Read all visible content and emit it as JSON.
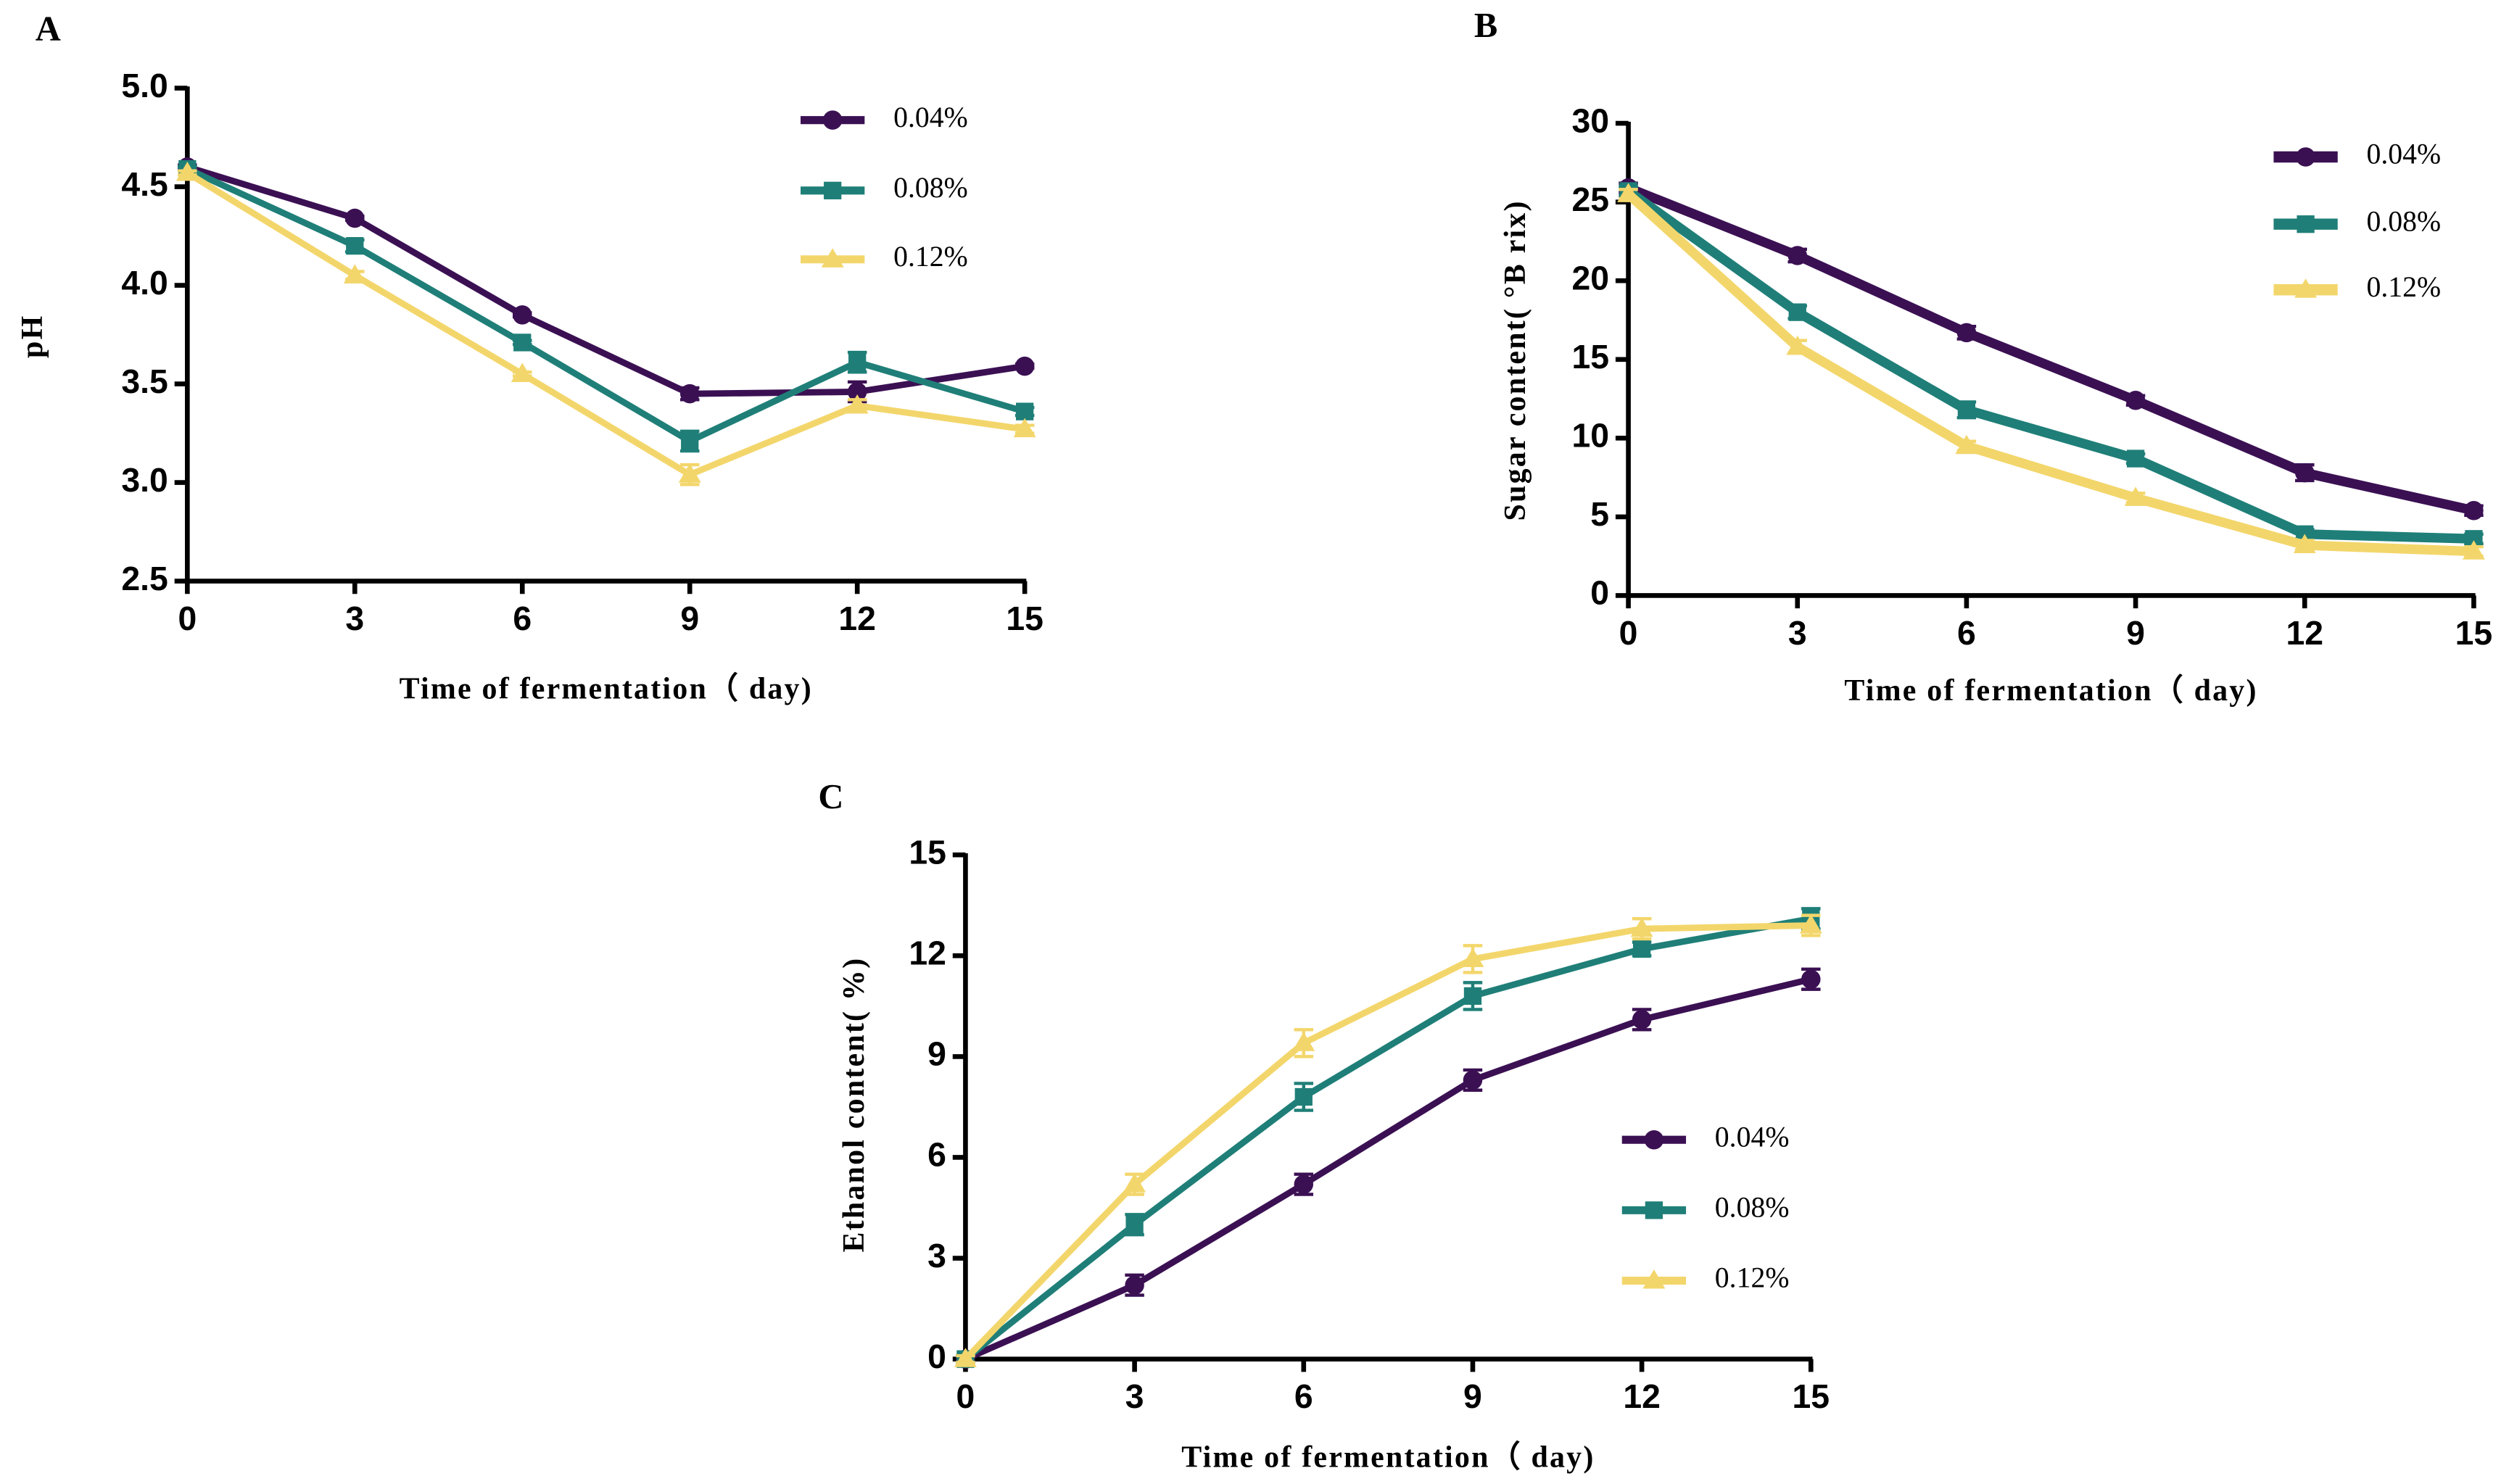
{
  "chart_data": [
    {
      "type": "line",
      "label": "A",
      "ylabel": "pH",
      "xlabel": "Time of fermentation（ day)",
      "x": [
        0,
        3,
        6,
        9,
        12,
        15
      ],
      "xlim": [
        0,
        15
      ],
      "xticks": [
        0,
        3,
        6,
        9,
        12,
        15
      ],
      "ylim": [
        2.5,
        5.0
      ],
      "yticks": [
        2.5,
        {
          "value": 3,
          "label": "3.0"
        },
        3.5,
        {
          "value": 4,
          "label": "4.0"
        },
        4.5,
        {
          "value": 5,
          "label": "5.0"
        }
      ],
      "legend": "upper right",
      "series": [
        {
          "name": "0.04%",
          "color": "#3b1053",
          "marker": "circle",
          "values": [
            4.6,
            4.34,
            3.85,
            3.45,
            3.46,
            3.59
          ],
          "errors": [
            0.01,
            0.01,
            0.01,
            0.03,
            0.05,
            0.01
          ]
        },
        {
          "name": "0.08%",
          "color": "#1f7f78",
          "marker": "square",
          "values": [
            4.59,
            4.2,
            3.71,
            3.21,
            3.61,
            3.36
          ],
          "errors": [
            0.01,
            0.03,
            0.01,
            0.05,
            0.05,
            0.02
          ]
        },
        {
          "name": "0.12%",
          "color": "#f3d66b",
          "marker": "triangle",
          "values": [
            4.57,
            4.05,
            3.55,
            3.04,
            3.39,
            3.27
          ],
          "errors": [
            0.01,
            0.02,
            0.01,
            0.05,
            0.03,
            0.02
          ]
        }
      ]
    },
    {
      "type": "line",
      "label": "B",
      "ylabel": "Sugar content( °B rix)",
      "xlabel": "Time of fermentation（ day)",
      "x": [
        0,
        3,
        6,
        9,
        12,
        15
      ],
      "xlim": [
        0,
        15
      ],
      "xticks": [
        0,
        3,
        6,
        9,
        12,
        15
      ],
      "ylim": [
        0,
        30
      ],
      "yticks": [
        0,
        5,
        10,
        15,
        20,
        25,
        30
      ],
      "legend": "upper right",
      "series": [
        {
          "name": "0.04%",
          "color": "#3b1053",
          "marker": "circle",
          "values": [
            25.9,
            21.6,
            16.7,
            12.4,
            7.8,
            5.4
          ],
          "errors": [
            0.3,
            0.4,
            0.4,
            0.3,
            0.5,
            0.3
          ]
        },
        {
          "name": "0.08%",
          "color": "#1f7f78",
          "marker": "square",
          "values": [
            25.7,
            18.0,
            11.8,
            8.7,
            3.9,
            3.6
          ],
          "errors": [
            0.3,
            0.4,
            0.5,
            0.3,
            0.3,
            0.3
          ]
        },
        {
          "name": "0.12%",
          "color": "#f3d66b",
          "marker": "triangle",
          "values": [
            25.5,
            15.8,
            9.5,
            6.2,
            3.2,
            2.8
          ],
          "errors": [
            0.3,
            0.4,
            0.3,
            0.3,
            0.3,
            0.3
          ]
        }
      ]
    },
    {
      "type": "line",
      "label": "C",
      "ylabel": "Ethanol content( %)",
      "xlabel": "Time of fermentation（ day)",
      "x": [
        0,
        3,
        6,
        9,
        12,
        15
      ],
      "xlim": [
        0,
        15
      ],
      "xticks": [
        0,
        3,
        6,
        9,
        12,
        15
      ],
      "ylim": [
        0,
        15
      ],
      "yticks": [
        0,
        3,
        6,
        9,
        12,
        15
      ],
      "legend": "center right",
      "series": [
        {
          "name": "0.04%",
          "color": "#3b1053",
          "marker": "circle",
          "values": [
            0,
            2.2,
            5.2,
            8.3,
            10.1,
            11.3
          ],
          "errors": [
            0.1,
            0.3,
            0.3,
            0.3,
            0.3,
            0.3
          ]
        },
        {
          "name": "0.08%",
          "color": "#1f7f78",
          "marker": "square",
          "values": [
            0,
            4.0,
            7.8,
            10.8,
            12.2,
            13.1
          ],
          "errors": [
            0.1,
            0.3,
            0.4,
            0.4,
            0.2,
            0.3
          ]
        },
        {
          "name": "0.12%",
          "color": "#f3d66b",
          "marker": "triangle",
          "values": [
            0,
            5.2,
            9.4,
            11.9,
            12.8,
            12.9
          ],
          "errors": [
            0.1,
            0.3,
            0.4,
            0.4,
            0.3,
            0.3
          ]
        }
      ]
    }
  ]
}
